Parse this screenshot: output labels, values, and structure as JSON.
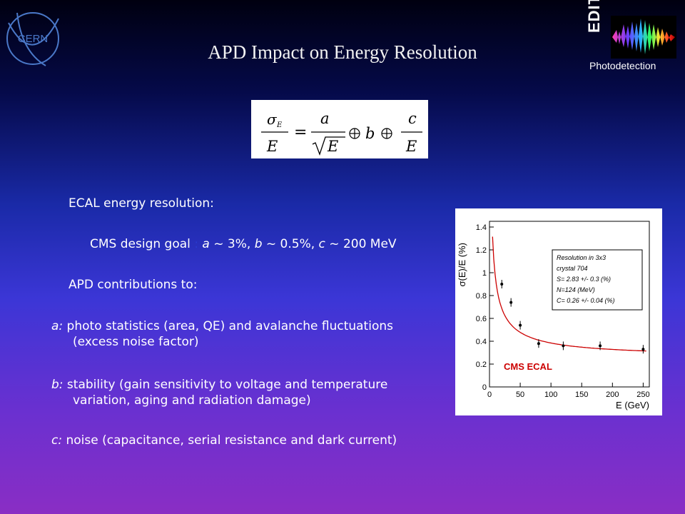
{
  "header": {
    "title": "APD Impact on Energy Resolution",
    "logo_left": "CERN",
    "logo_right_text": "EDIT",
    "logo_right_caption": "Photodetection"
  },
  "formula": {
    "lhs_num": "σ",
    "lhs_sub": "E",
    "lhs_den": "E",
    "a": "a",
    "sqrtE": "E",
    "b": "b",
    "c": "c",
    "c_den": "E"
  },
  "content": {
    "ecal_label": "ECAL energy resolution:",
    "cms_goal_label": "CMS design goal",
    "cms_goal_sep": ":",
    "goal_a": "a",
    "goal_a_val": " ~ 3%, ",
    "goal_b": "b",
    "goal_b_val": " ~ 0.5%, ",
    "goal_c": "c",
    "goal_c_val": " ~ 200 MeV",
    "apd_label": "APD contributions to:",
    "bullets": [
      {
        "key": "a:",
        "line1": " photo statistics (area, QE) and avalanche fluctuations",
        "line2": "(excess noise factor)"
      },
      {
        "key": "b:",
        "line1": " stability (gain sensitivity to voltage and temperature",
        "line2": "variation, aging and radiation damage)"
      },
      {
        "key": "c:",
        "line1": " noise (capacitance, serial resistance and dark current)",
        "line2": ""
      }
    ]
  },
  "chart_data": {
    "type": "scatter",
    "title": "",
    "xlabel": "E (GeV)",
    "ylabel": "σ(E)/E (%)",
    "xlim": [
      0,
      260
    ],
    "ylim": [
      0,
      1.45
    ],
    "xticks": [
      "0",
      "50",
      "100",
      "150",
      "200",
      "250"
    ],
    "yticks": [
      "0",
      "0.2",
      "0.4",
      "0.6",
      "0.8",
      "1",
      "1.2",
      "1.4"
    ],
    "x": [
      20,
      35,
      50,
      80,
      120,
      180,
      250
    ],
    "y": [
      0.9,
      0.74,
      0.54,
      0.38,
      0.36,
      0.36,
      0.33
    ],
    "fit": {
      "S": 2.83,
      "N": 0.124,
      "C": 0.26
    },
    "legend_box": [
      "Resolution in 3x3",
      "crystal 704",
      "S= 2.83 +/- 0.3 (%)",
      "N=124 (MeV)",
      "C= 0.26 +/- 0.04 (%)"
    ],
    "annotation": "CMS ECAL",
    "colors": {
      "fit": "#cc0000",
      "annotation": "#cc0000"
    }
  }
}
